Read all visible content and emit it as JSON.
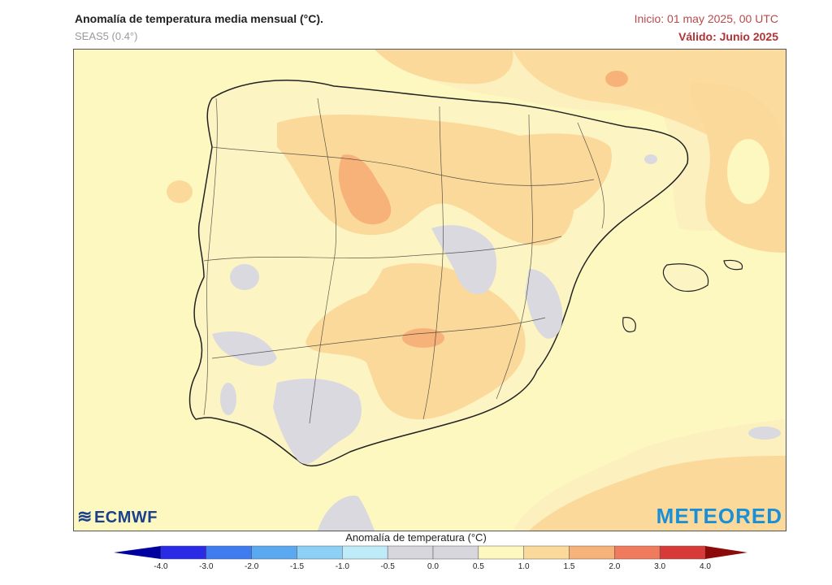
{
  "header": {
    "title": "Anomalía de temperatura media mensual (°C).",
    "subtitle": "SEAS5 (0.4°)",
    "init": "Inicio: 01 may 2025, 00 UTC",
    "valid": "Válido: Junio 2025"
  },
  "logos": {
    "ecmwf": "ECMWF",
    "meteored": "METEORED"
  },
  "colorbar": {
    "title": "Anomalía de temperatura (°C)",
    "ticks": [
      "-4.0",
      "-3.0",
      "-2.0",
      "-1.5",
      "-1.0",
      "-0.5",
      "0.0",
      "0.5",
      "1.0",
      "1.5",
      "2.0",
      "3.0",
      "4.0"
    ],
    "colors": [
      "#2a2ae6",
      "#3f7cf0",
      "#5aa8f0",
      "#8cd0f5",
      "#bfeaf7",
      "#d6d6dc",
      "#d6d6dc",
      "#fdf8c0",
      "#fbd99a",
      "#f7b27a",
      "#ef7a5c",
      "#d83a3a"
    ],
    "left_end": "#0000a0",
    "right_end": "#8b0a0a"
  },
  "colors": {
    "sea": "#fdf8c0",
    "land": "#fcf4c2",
    "anom_0_5": "#d9d9df",
    "anom_1_0": "#fbd99a",
    "anom_1_5": "#f7b27a",
    "border": "#222222"
  }
}
